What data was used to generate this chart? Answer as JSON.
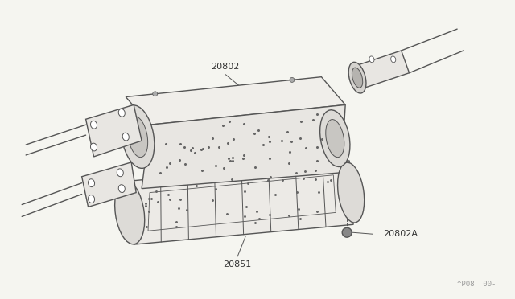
{
  "background_color": "#f5f5f0",
  "fig_width": 6.4,
  "fig_height": 3.72,
  "dpi": 100,
  "line_color": "#555555",
  "line_width": 1.0,
  "label_color": "#333333",
  "label_fontsize": 8.0,
  "watermark_text": "^P08  00-",
  "watermark_fontsize": 6.5,
  "watermark_color": "#999999"
}
